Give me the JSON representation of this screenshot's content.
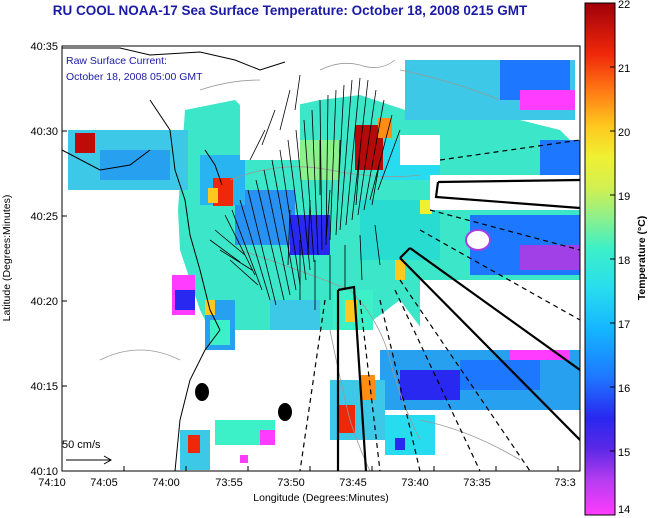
{
  "title": "RU COOL  NOAA-17  Sea Surface Temperature:  October 18, 2008 0215 GMT",
  "annotation": {
    "line1": "Raw Surface Current:",
    "line2": "October 18, 2008 05:00 GMT"
  },
  "scale_label": "50 cm/s",
  "axes": {
    "xlabel": "Longitude (Degrees:Minutes)",
    "ylabel": "Latitude (Degrees:Minutes)",
    "xticks": [
      "74:10",
      "74:05",
      "74:00",
      "73:55",
      "73:50",
      "73:45",
      "73:40",
      "73:35",
      "73:3"
    ],
    "yticks": [
      "40:35",
      "40:30",
      "40:25",
      "40:20",
      "40:15",
      "40:10"
    ]
  },
  "colorbar": {
    "label": "Temperature (°C)",
    "ticks": [
      "22",
      "21",
      "20",
      "19",
      "18",
      "17",
      "16",
      "15",
      "14"
    ],
    "min": 14,
    "max": 22
  },
  "colors": {
    "title": "#1a1aa6",
    "annotation": "#1a1aa6",
    "land": "#ffffff",
    "frame": "#000000"
  }
}
